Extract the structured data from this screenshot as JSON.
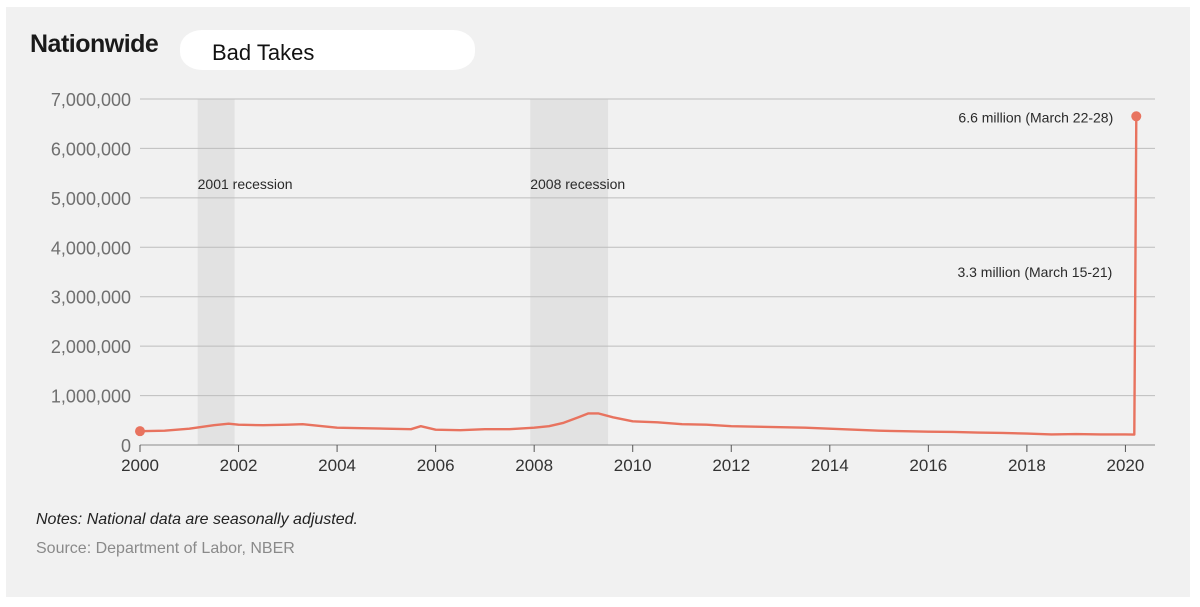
{
  "chart_data": {
    "type": "line",
    "title": "Nationwide",
    "overlay_label": "Bad Takes",
    "xlabel": "",
    "ylabel": "",
    "xlim": [
      2000,
      2020.6
    ],
    "ylim": [
      0,
      7000000
    ],
    "y_ticks": [
      0,
      1000000,
      2000000,
      3000000,
      4000000,
      5000000,
      6000000,
      7000000
    ],
    "y_tick_labels": [
      "0",
      "1,000,000",
      "2,000,000",
      "3,000,000",
      "4,000,000",
      "5,000,000",
      "6,000,000",
      "7,000,000"
    ],
    "x_ticks": [
      2000,
      2002,
      2004,
      2006,
      2008,
      2010,
      2012,
      2014,
      2016,
      2018,
      2020
    ],
    "x_tick_labels": [
      "2000",
      "2002",
      "2004",
      "2006",
      "2008",
      "2010",
      "2012",
      "2014",
      "2016",
      "2018",
      "2020"
    ],
    "grid": true,
    "legend": "none",
    "series": [
      {
        "color": "#e8735f",
        "x": [
          2000.0,
          2000.5,
          2001.0,
          2001.5,
          2001.8,
          2002.0,
          2002.5,
          2003.0,
          2003.3,
          2003.7,
          2004.0,
          2004.5,
          2005.0,
          2005.5,
          2005.7,
          2006.0,
          2006.5,
          2007.0,
          2007.5,
          2008.0,
          2008.3,
          2008.6,
          2008.9,
          2009.1,
          2009.3,
          2009.6,
          2010.0,
          2010.5,
          2011.0,
          2011.5,
          2012.0,
          2012.5,
          2013.0,
          2013.5,
          2014.0,
          2014.5,
          2015.0,
          2015.5,
          2016.0,
          2016.5,
          2017.0,
          2017.5,
          2018.0,
          2018.5,
          2019.0,
          2019.5,
          2020.0,
          2020.18,
          2020.2,
          2020.22
        ],
        "y": [
          280000,
          290000,
          330000,
          400000,
          430000,
          410000,
          400000,
          410000,
          420000,
          380000,
          350000,
          340000,
          330000,
          320000,
          380000,
          310000,
          300000,
          320000,
          320000,
          350000,
          380000,
          450000,
          560000,
          640000,
          640000,
          560000,
          480000,
          460000,
          420000,
          410000,
          380000,
          370000,
          360000,
          350000,
          330000,
          310000,
          290000,
          280000,
          270000,
          265000,
          250000,
          245000,
          230000,
          215000,
          220000,
          215000,
          215000,
          211000,
          3300000,
          6650000
        ]
      }
    ],
    "shaded_regions": [
      {
        "label": "2001 recession",
        "x_start": 2001.17,
        "x_end": 2001.92
      },
      {
        "label": "2008 recession",
        "x_start": 2007.92,
        "x_end": 2009.5
      }
    ],
    "annotations": [
      {
        "text": "6.6 million (March 22-28)",
        "x": 2020.22,
        "y": 6650000
      },
      {
        "text": "3.3 million (March 15-21)",
        "x": 2020.2,
        "y": 3300000
      }
    ],
    "notes": "Notes: National data are seasonally adjusted.",
    "source": "Source: Department of Labor, NBER"
  }
}
